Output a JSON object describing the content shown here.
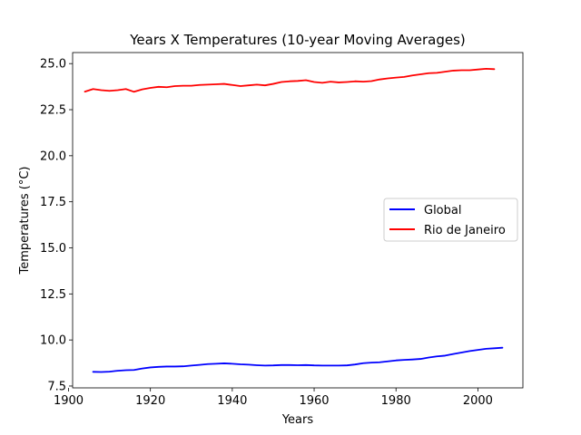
{
  "chart_data": {
    "type": "line",
    "title": "Years X Temperatures (10-year Moving Averages)",
    "xlabel": "Years",
    "ylabel": "Temperatures (°C)",
    "xlim": [
      1901,
      2011
    ],
    "ylim": [
      7.4,
      25.6
    ],
    "xticks": [
      1900,
      1920,
      1940,
      1960,
      1980,
      2000
    ],
    "yticks": [
      7.5,
      10.0,
      12.5,
      15.0,
      17.5,
      20.0,
      22.5,
      25.0
    ],
    "xtick_labels": [
      "1900",
      "1920",
      "1940",
      "1960",
      "1980",
      "2000"
    ],
    "ytick_labels": [
      "7.5",
      "10.0",
      "12.5",
      "15.0",
      "17.5",
      "20.0",
      "22.5",
      "25.0"
    ],
    "grid": false,
    "legend_position": "center-right",
    "series": [
      {
        "name": "Global",
        "color": "#0000ff",
        "x": [
          1906,
          1908,
          1910,
          1912,
          1914,
          1916,
          1918,
          1920,
          1922,
          1924,
          1926,
          1928,
          1930,
          1932,
          1934,
          1936,
          1938,
          1940,
          1942,
          1944,
          1946,
          1948,
          1950,
          1952,
          1954,
          1956,
          1958,
          1960,
          1962,
          1964,
          1966,
          1968,
          1970,
          1972,
          1974,
          1976,
          1978,
          1980,
          1982,
          1984,
          1986,
          1988,
          1990,
          1992,
          1994,
          1996,
          1998,
          2000,
          2002,
          2004,
          2006
        ],
        "y": [
          8.27,
          8.26,
          8.28,
          8.33,
          8.36,
          8.37,
          8.45,
          8.51,
          8.54,
          8.56,
          8.56,
          8.57,
          8.61,
          8.65,
          8.69,
          8.71,
          8.73,
          8.71,
          8.68,
          8.66,
          8.63,
          8.61,
          8.62,
          8.64,
          8.64,
          8.63,
          8.64,
          8.62,
          8.61,
          8.61,
          8.61,
          8.62,
          8.67,
          8.74,
          8.77,
          8.79,
          8.84,
          8.89,
          8.92,
          8.94,
          8.97,
          9.05,
          9.11,
          9.15,
          9.24,
          9.32,
          9.4,
          9.46,
          9.52,
          9.55,
          9.58
        ]
      },
      {
        "name": "Rio de Janeiro",
        "color": "#ff0000",
        "x": [
          1904,
          1906,
          1908,
          1910,
          1912,
          1914,
          1916,
          1918,
          1920,
          1922,
          1924,
          1926,
          1928,
          1930,
          1932,
          1934,
          1936,
          1938,
          1940,
          1942,
          1944,
          1946,
          1948,
          1950,
          1952,
          1954,
          1956,
          1958,
          1960,
          1962,
          1964,
          1966,
          1968,
          1970,
          1972,
          1974,
          1976,
          1978,
          1980,
          1982,
          1984,
          1986,
          1988,
          1990,
          1992,
          1994,
          1996,
          1998,
          2000,
          2002,
          2004
        ],
        "y": [
          23.48,
          23.62,
          23.56,
          23.52,
          23.56,
          23.62,
          23.47,
          23.6,
          23.68,
          23.74,
          23.72,
          23.78,
          23.8,
          23.8,
          23.84,
          23.86,
          23.88,
          23.9,
          23.84,
          23.78,
          23.82,
          23.86,
          23.82,
          23.9,
          24.0,
          24.04,
          24.06,
          24.1,
          24.0,
          23.96,
          24.02,
          23.98,
          24.0,
          24.04,
          24.02,
          24.05,
          24.14,
          24.2,
          24.24,
          24.28,
          24.36,
          24.42,
          24.48,
          24.5,
          24.56,
          24.62,
          24.64,
          24.64,
          24.68,
          24.72,
          24.7
        ]
      }
    ]
  }
}
